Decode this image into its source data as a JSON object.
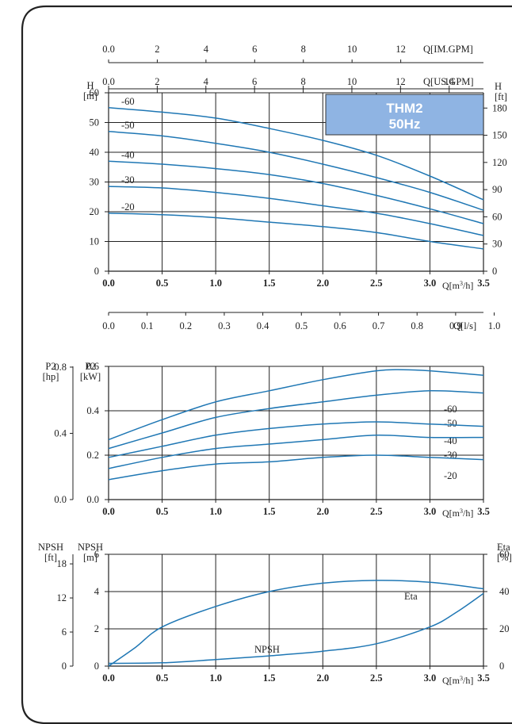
{
  "colors": {
    "curve": "#1f77b4",
    "badge_fill": "#8fb4e3",
    "badge_text": "#ffffff",
    "frame": "#222222",
    "grid": "#222222"
  },
  "chart_data": [
    {
      "type": "line",
      "title": "THM2\n50Hz",
      "title_lines": [
        "THM2",
        "50Hz"
      ],
      "xlabel": "Q[m³/h]",
      "ylabel": "H [m]",
      "ylabel_lines": [
        "H",
        "[m]"
      ],
      "ylabel_right_lines": [
        "H",
        "[ft]"
      ],
      "xlim": [
        0,
        3.5
      ],
      "ylim": [
        0,
        60
      ],
      "x_ticks": [
        "0.0",
        "0.5",
        "1.0",
        "1.5",
        "2.0",
        "2.5",
        "3.0",
        "3.5"
      ],
      "y_ticks": [
        "0",
        "10",
        "20",
        "30",
        "40",
        "50",
        "60"
      ],
      "y_ticks_right": [
        {
          "label": "0",
          "value": 0
        },
        {
          "label": "30",
          "value": 9.144
        },
        {
          "label": "60",
          "value": 18.288
        },
        {
          "label": "90",
          "value": 27.432
        },
        {
          "label": "120",
          "value": 36.576
        },
        {
          "label": "150",
          "value": 45.72
        },
        {
          "label": "180",
          "value": 54.864
        }
      ],
      "top_axes": [
        {
          "label": "Q[IM.GPM]",
          "ticks": [
            "0.0",
            "2",
            "4",
            "6",
            "8",
            "10",
            "12"
          ],
          "values": [
            0,
            0.4546,
            0.9092,
            1.3638,
            1.8184,
            2.273,
            2.7276
          ]
        },
        {
          "label": "Q[US.GPM]",
          "ticks": [
            "0.0",
            "2",
            "4",
            "6",
            "8",
            "10",
            "12",
            "14"
          ],
          "values": [
            0,
            0.4543,
            0.9085,
            1.3628,
            1.8171,
            2.2713,
            2.7256,
            3.1798
          ]
        }
      ],
      "grid": true,
      "series": [
        {
          "name": "-60",
          "x": [
            0,
            0.5,
            1.0,
            1.5,
            2.0,
            2.5,
            3.0,
            3.5
          ],
          "y": [
            55,
            53.5,
            51.5,
            48,
            44,
            39,
            32,
            24
          ]
        },
        {
          "name": "-50",
          "x": [
            0,
            0.5,
            1.0,
            1.5,
            2.0,
            2.5,
            3.0,
            3.5
          ],
          "y": [
            47,
            45.5,
            43,
            40,
            36,
            31.5,
            26.5,
            20.5
          ]
        },
        {
          "name": "-40",
          "x": [
            0,
            0.5,
            1.0,
            1.5,
            2.0,
            2.5,
            3.0,
            3.5
          ],
          "y": [
            37,
            36,
            34.5,
            32.5,
            29.5,
            25.5,
            21,
            16
          ]
        },
        {
          "name": "-30",
          "x": [
            0,
            0.5,
            1.0,
            1.5,
            2.0,
            2.5,
            3.0,
            3.5
          ],
          "y": [
            28.5,
            28,
            26.5,
            24.5,
            22,
            19.5,
            16,
            12
          ]
        },
        {
          "name": "-20",
          "x": [
            0,
            0.5,
            1.0,
            1.5,
            2.0,
            2.5,
            3.0,
            3.5
          ],
          "y": [
            19.5,
            19,
            18,
            16.5,
            15,
            13,
            10,
            7.5
          ]
        }
      ]
    },
    {
      "type": "line",
      "xlabel": "Q[l/s]",
      "xlim": [
        0,
        0.9722
      ],
      "x_ticks": [
        "0.0",
        "0.1",
        "0.2",
        "0.3",
        "0.4",
        "0.5",
        "0.6",
        "0.7",
        "0.8",
        "0.9",
        "1.0"
      ]
    },
    {
      "type": "line",
      "xlabel": "Q[m³/h]",
      "ylabel": "P2 [kW]",
      "ylabel_lines": [
        "P2",
        "[kW]"
      ],
      "ylabel_outer_lines": [
        "P2",
        "[hp]"
      ],
      "xlim": [
        0,
        3.5
      ],
      "ylim": [
        0,
        0.6
      ],
      "x_ticks": [
        "0.0",
        "0.5",
        "1.0",
        "1.5",
        "2.0",
        "2.5",
        "3.0",
        "3.5"
      ],
      "y_ticks": [
        "0.0",
        "0.2",
        "0.4",
        "0.6"
      ],
      "y_ticks_outer": [
        {
          "label": "0.0",
          "value": 0
        },
        {
          "label": "0.4",
          "value": 0.2983
        },
        {
          "label": "0.8",
          "value": 0.5966
        }
      ],
      "grid": true,
      "series": [
        {
          "name": "-60",
          "x": [
            0,
            0.5,
            1.0,
            1.5,
            2.0,
            2.5,
            2.75,
            3.0,
            3.5
          ],
          "y": [
            0.27,
            0.36,
            0.44,
            0.49,
            0.54,
            0.58,
            0.585,
            0.58,
            0.56
          ]
        },
        {
          "name": "-50",
          "x": [
            0,
            0.5,
            1.0,
            1.5,
            2.0,
            2.5,
            3.0,
            3.5
          ],
          "y": [
            0.23,
            0.3,
            0.37,
            0.41,
            0.44,
            0.47,
            0.49,
            0.48
          ]
        },
        {
          "name": "-40",
          "x": [
            0,
            0.5,
            1.0,
            1.5,
            2.0,
            2.5,
            3.0,
            3.5
          ],
          "y": [
            0.19,
            0.24,
            0.29,
            0.32,
            0.34,
            0.35,
            0.34,
            0.33
          ]
        },
        {
          "name": "-30",
          "x": [
            0,
            0.5,
            1.0,
            1.5,
            2.0,
            2.5,
            3.0,
            3.5
          ],
          "y": [
            0.14,
            0.19,
            0.23,
            0.25,
            0.27,
            0.29,
            0.28,
            0.28
          ]
        },
        {
          "name": "-20",
          "x": [
            0,
            0.5,
            1.0,
            1.5,
            2.0,
            2.5,
            3.0,
            3.5
          ],
          "y": [
            0.09,
            0.13,
            0.16,
            0.17,
            0.19,
            0.2,
            0.19,
            0.18
          ]
        }
      ],
      "labels_order": [
        "-60",
        "-50",
        "-40",
        "-30",
        "-20"
      ]
    },
    {
      "type": "line",
      "xlabel": "Q[m³/h]",
      "ylabel": "NPSH [m]",
      "ylabel_lines": [
        "NPSH",
        "[m]"
      ],
      "ylabel_outer_lines": [
        "NPSH",
        "[ft]"
      ],
      "ylabel_right_lines": [
        "Eta",
        "[%]"
      ],
      "xlim": [
        0,
        3.5
      ],
      "ylim": [
        0,
        6
      ],
      "x_ticks": [
        "0.0",
        "0.5",
        "1.0",
        "1.5",
        "2.0",
        "2.5",
        "3.0",
        "3.5"
      ],
      "y_ticks": [
        "0",
        "2",
        "4",
        "6"
      ],
      "y_ticks_outer": [
        {
          "label": "0",
          "value": 0
        },
        {
          "label": "6",
          "value": 1.8288
        },
        {
          "label": "12",
          "value": 3.6576
        },
        {
          "label": "18",
          "value": 5.4864
        }
      ],
      "y_ticks_right": [
        {
          "label": "0",
          "value": 0
        },
        {
          "label": "20",
          "value": 2
        },
        {
          "label": "40",
          "value": 4
        },
        {
          "label": "60",
          "value": 6
        }
      ],
      "grid": true,
      "series": [
        {
          "name": "Eta",
          "x": [
            0,
            0.25,
            0.5,
            1.0,
            1.5,
            2.0,
            2.5,
            3.0,
            3.5
          ],
          "y": [
            0,
            1.0,
            2.1,
            3.2,
            4.0,
            4.45,
            4.6,
            4.5,
            4.15
          ]
        },
        {
          "name": "NPSH",
          "x": [
            0,
            0.5,
            1.0,
            1.5,
            2.0,
            2.5,
            3.0,
            3.25,
            3.5
          ],
          "y": [
            0.15,
            0.18,
            0.35,
            0.55,
            0.8,
            1.2,
            2.1,
            2.9,
            3.9
          ]
        }
      ]
    }
  ]
}
